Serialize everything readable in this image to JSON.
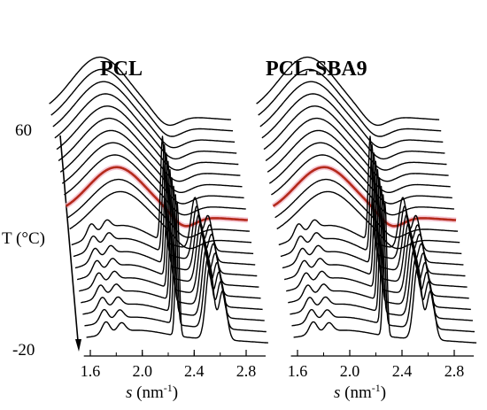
{
  "chart_data": {
    "type": "line",
    "figure_kind": "waterfall (stacked WAXS profiles vs temperature)",
    "temperature_axis": {
      "label": "T (°C)",
      "top": "60",
      "bottom": "-20",
      "direction": "decreasing downward"
    },
    "xaxis": {
      "label_italic": "s",
      "label_unit": " (nm",
      "label_exp": "-1",
      "label_close": ")",
      "ticks": [
        "1.6",
        "2.0",
        "2.4",
        "2.8"
      ],
      "range": [
        1.55,
        2.95
      ]
    },
    "colors": {
      "trace": "#000000",
      "highlight": "#b52a1c",
      "highlight_glow": "#f2b9c8"
    },
    "panels": [
      {
        "id": "left",
        "title": "PCL",
        "n_traces": 21,
        "highlight_index": 11,
        "transition_index": 8,
        "amorphous_halo": {
          "center": 1.96,
          "width": 0.22
        },
        "crystal_peaks": [
          {
            "position": 2.27,
            "width": 0.014
          },
          {
            "position": 2.52,
            "width": 0.03
          },
          {
            "position": 2.62,
            "width": 0.03
          }
        ],
        "minor_peaks": [
          1.72,
          1.84
        ]
      },
      {
        "id": "right",
        "title": "PCL-SBA9",
        "n_traces": 21,
        "highlight_index": 11,
        "transition_index": 8,
        "amorphous_halo": {
          "center": 1.96,
          "width": 0.22
        },
        "crystal_peaks": [
          {
            "position": 2.27,
            "width": 0.014
          },
          {
            "position": 2.52,
            "width": 0.03
          },
          {
            "position": 2.62,
            "width": 0.03
          }
        ],
        "minor_peaks": [
          1.72,
          1.84
        ]
      }
    ]
  }
}
